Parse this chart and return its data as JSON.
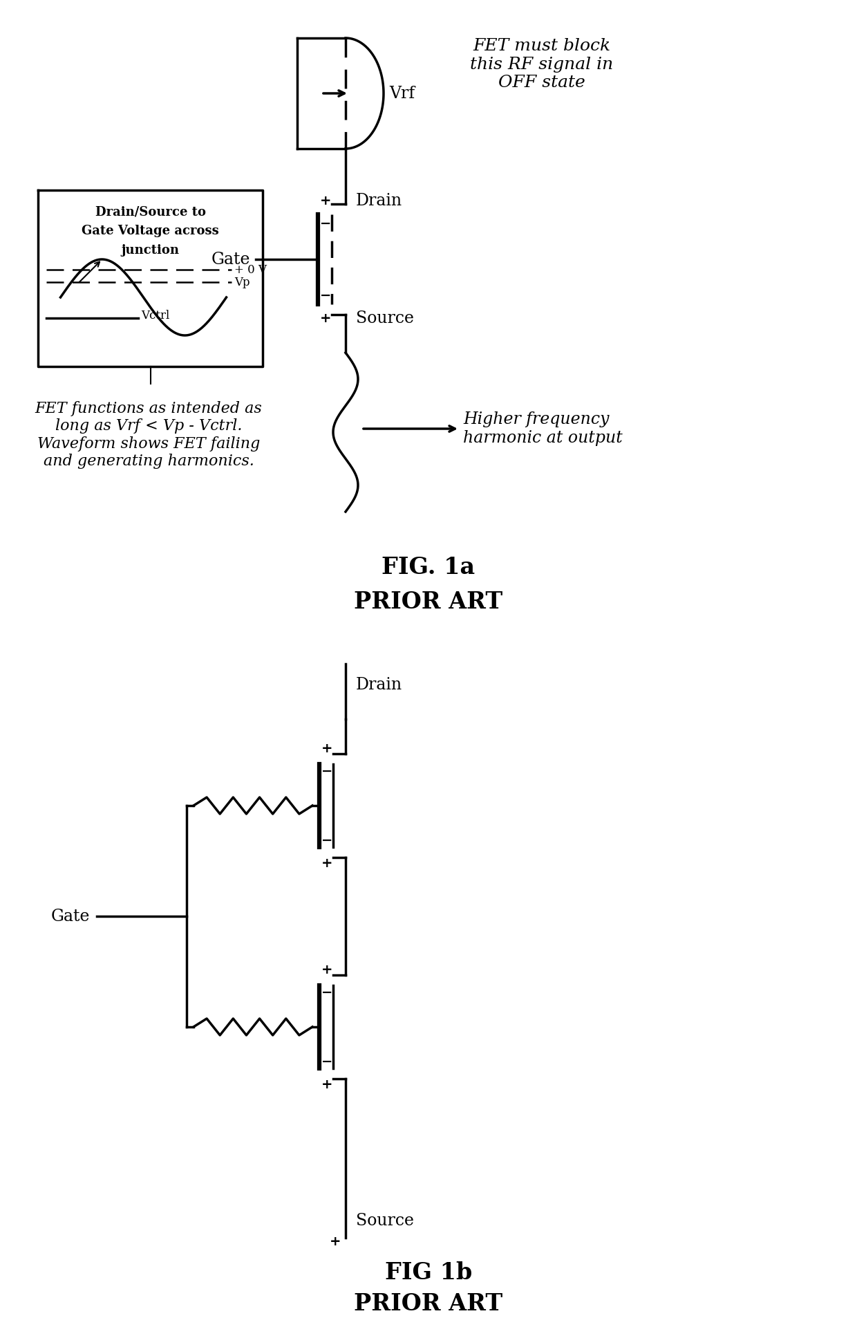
{
  "fig_width": 12.4,
  "fig_height": 19.19,
  "bg_color": "#ffffff",
  "line_color": "#000000",
  "fig1a_title": "FIG. 1a",
  "fig1a_subtitle": "PRIOR ART",
  "fig1b_title": "FIG 1b",
  "fig1b_subtitle": "PRIOR ART",
  "annotation_vrf": "Vrf",
  "annotation_drain": "Drain",
  "annotation_source": "Source",
  "annotation_gate": "Gate",
  "annotation_fet_block": "FET must block\nthis RF signal in\nOFF state",
  "annotation_higher_freq": "Higher frequency\nharmonic at output",
  "annotation_fet_functions": "FET functions as intended as\nlong as Vrf < Vp - Vctrl.\nWaveform shows FET failing\nand generating harmonics.",
  "inset_title_line1": "Drain/Source to",
  "inset_title_line2": "Gate Voltage across",
  "inset_title_line3": "junction",
  "inset_label_0v": "+ 0 V",
  "inset_label_vp": "Vp",
  "inset_label_vctrl": "Vctrl"
}
